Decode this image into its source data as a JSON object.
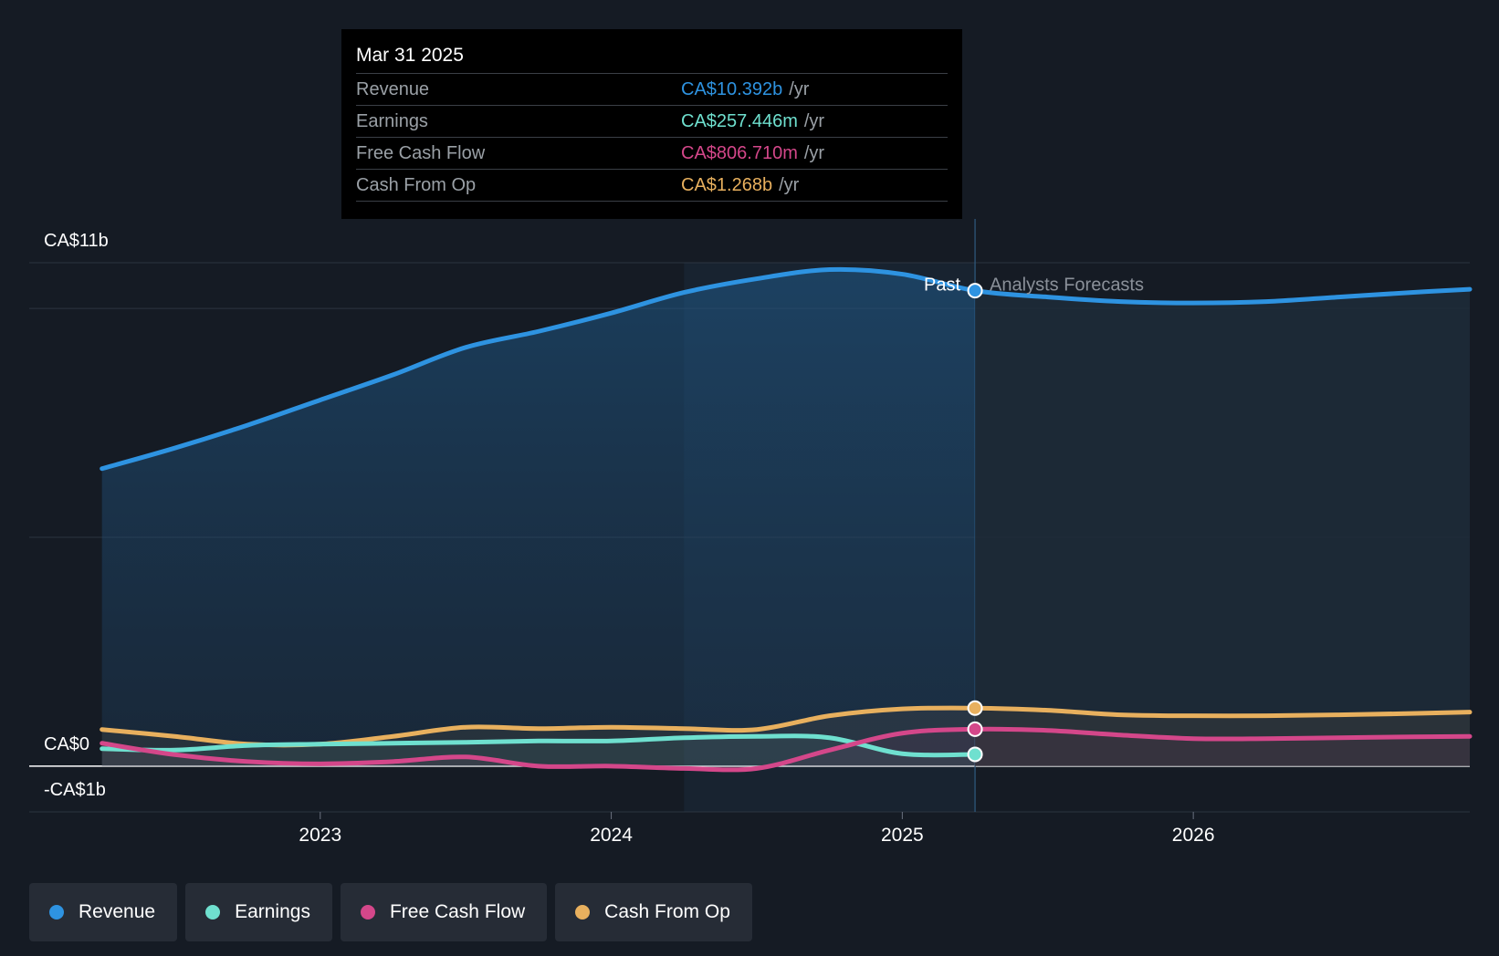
{
  "chart_data": {
    "type": "line",
    "currency_prefix": "CA$",
    "y_axis_labels": [
      {
        "label": "CA$11b",
        "value": 11
      },
      {
        "label": "CA$0",
        "value": 0
      },
      {
        "label": "-CA$1b",
        "value": -1
      }
    ],
    "ylim": [
      -1,
      11
    ],
    "x_ticks": [
      {
        "label": "2023",
        "year": 2023.0
      },
      {
        "label": "2024",
        "year": 2024.0
      },
      {
        "label": "2025",
        "year": 2025.0
      },
      {
        "label": "2026",
        "year": 2026.0
      }
    ],
    "xlim": [
      2022.0,
      2026.95
    ],
    "divider_year": 2025.25,
    "past_label": "Past",
    "forecast_label": "Analysts Forecasts",
    "series": [
      {
        "name": "Revenue",
        "color": "#2e93e1",
        "points": [
          [
            2022.25,
            6.5
          ],
          [
            2022.5,
            6.95
          ],
          [
            2022.75,
            7.45
          ],
          [
            2023.0,
            8.0
          ],
          [
            2023.25,
            8.55
          ],
          [
            2023.5,
            9.15
          ],
          [
            2023.75,
            9.5
          ],
          [
            2024.0,
            9.9
          ],
          [
            2024.25,
            10.35
          ],
          [
            2024.5,
            10.65
          ],
          [
            2024.75,
            10.85
          ],
          [
            2025.0,
            10.75
          ],
          [
            2025.25,
            10.39
          ],
          [
            2025.5,
            10.25
          ],
          [
            2025.75,
            10.15
          ],
          [
            2026.0,
            10.12
          ],
          [
            2026.25,
            10.15
          ],
          [
            2026.5,
            10.25
          ],
          [
            2026.75,
            10.35
          ],
          [
            2026.95,
            10.42
          ]
        ]
      },
      {
        "name": "Earnings",
        "color": "#6fe0cf",
        "points": [
          [
            2022.25,
            0.38
          ],
          [
            2022.5,
            0.35
          ],
          [
            2022.75,
            0.45
          ],
          [
            2023.0,
            0.48
          ],
          [
            2023.25,
            0.5
          ],
          [
            2023.5,
            0.52
          ],
          [
            2023.75,
            0.55
          ],
          [
            2024.0,
            0.55
          ],
          [
            2024.25,
            0.62
          ],
          [
            2024.5,
            0.65
          ],
          [
            2024.75,
            0.62
          ],
          [
            2025.0,
            0.27
          ],
          [
            2025.25,
            0.257
          ]
        ]
      },
      {
        "name": "Free Cash Flow",
        "color": "#d4478a",
        "points": [
          [
            2022.25,
            0.5
          ],
          [
            2022.5,
            0.25
          ],
          [
            2022.75,
            0.1
          ],
          [
            2023.0,
            0.05
          ],
          [
            2023.25,
            0.1
          ],
          [
            2023.5,
            0.2
          ],
          [
            2023.75,
            0.0
          ],
          [
            2024.0,
            0.0
          ],
          [
            2024.25,
            -0.05
          ],
          [
            2024.5,
            -0.05
          ],
          [
            2024.75,
            0.35
          ],
          [
            2025.0,
            0.72
          ],
          [
            2025.25,
            0.807
          ],
          [
            2025.5,
            0.78
          ],
          [
            2025.75,
            0.68
          ],
          [
            2026.0,
            0.6
          ],
          [
            2026.25,
            0.6
          ],
          [
            2026.5,
            0.62
          ],
          [
            2026.75,
            0.64
          ],
          [
            2026.95,
            0.65
          ]
        ]
      },
      {
        "name": "Cash From Op",
        "color": "#e8b05e",
        "points": [
          [
            2022.25,
            0.8
          ],
          [
            2022.5,
            0.65
          ],
          [
            2022.75,
            0.48
          ],
          [
            2023.0,
            0.48
          ],
          [
            2023.25,
            0.65
          ],
          [
            2023.5,
            0.85
          ],
          [
            2023.75,
            0.82
          ],
          [
            2024.0,
            0.85
          ],
          [
            2024.25,
            0.82
          ],
          [
            2024.5,
            0.8
          ],
          [
            2024.75,
            1.1
          ],
          [
            2025.0,
            1.25
          ],
          [
            2025.25,
            1.268
          ],
          [
            2025.5,
            1.22
          ],
          [
            2025.75,
            1.12
          ],
          [
            2026.0,
            1.1
          ],
          [
            2026.25,
            1.1
          ],
          [
            2026.5,
            1.12
          ],
          [
            2026.75,
            1.15
          ],
          [
            2026.95,
            1.18
          ]
        ]
      }
    ],
    "tooltip": {
      "date": "Mar 31 2025",
      "unit": "/yr",
      "rows": [
        {
          "label": "Revenue",
          "value": "CA$10.392b",
          "color": "#2e93e1"
        },
        {
          "label": "Earnings",
          "value": "CA$257.446m",
          "color": "#6fe0cf"
        },
        {
          "label": "Free Cash Flow",
          "value": "CA$806.710m",
          "color": "#d4478a"
        },
        {
          "label": "Cash From Op",
          "value": "CA$1.268b",
          "color": "#e8b05e"
        }
      ]
    }
  },
  "legend": [
    {
      "label": "Revenue",
      "color": "#2e93e1"
    },
    {
      "label": "Earnings",
      "color": "#6fe0cf"
    },
    {
      "label": "Free Cash Flow",
      "color": "#d4478a"
    },
    {
      "label": "Cash From Op",
      "color": "#e8b05e"
    }
  ]
}
